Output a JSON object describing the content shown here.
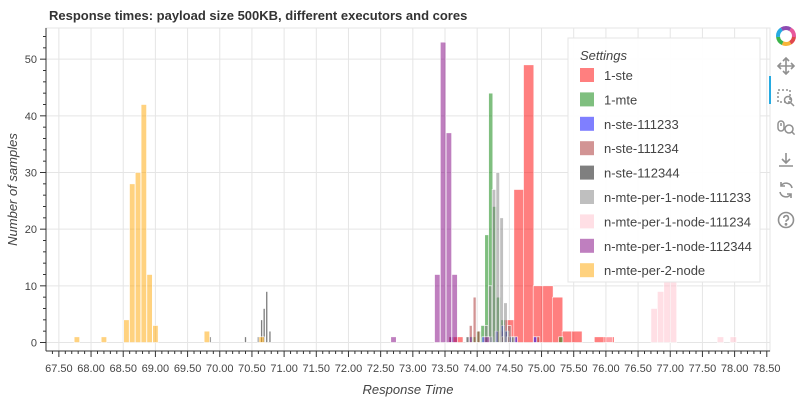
{
  "chart_data": {
    "type": "bar",
    "title": "Response times: payload size 500KB, different executors and cores",
    "xlabel": "Response Time",
    "ylabel": "Number of samples",
    "xlim": [
      67.3,
      78.55
    ],
    "ylim": [
      -1.5,
      55.5
    ],
    "x_tick_labels": [
      "67.50",
      "68.00",
      "68.50",
      "69.00",
      "69.50",
      "70.00",
      "70.50",
      "71.00",
      "71.50",
      "72.00",
      "72.50",
      "73.00",
      "73.50",
      "74.00",
      "74.50",
      "75.00",
      "75.50",
      "76.00",
      "76.50",
      "77.00",
      "77.50",
      "78.00",
      "78.50"
    ],
    "y_tick_labels": [
      "0",
      "10",
      "20",
      "30",
      "40",
      "50"
    ],
    "grid": true,
    "legend_title": "Settings",
    "legend_position": "top-right",
    "series": [
      {
        "name": "1-ste",
        "color": "#ff0000",
        "opacity": 0.5,
        "bin_width": 0.16,
        "bins": [
          [
            73.7,
            1
          ],
          [
            74.35,
            2
          ],
          [
            74.5,
            4
          ],
          [
            74.65,
            27
          ],
          [
            74.8,
            49
          ],
          [
            74.95,
            10
          ],
          [
            75.1,
            10
          ],
          [
            75.25,
            8
          ],
          [
            75.4,
            2
          ],
          [
            75.55,
            2
          ],
          [
            75.9,
            1
          ],
          [
            76.05,
            1
          ]
        ]
      },
      {
        "name": "1-mte",
        "color": "#008000",
        "opacity": 0.5,
        "bin_width": 0.065,
        "bins": [
          [
            73.95,
            1
          ],
          [
            74.02,
            2
          ],
          [
            74.09,
            3
          ],
          [
            74.15,
            19
          ],
          [
            74.21,
            44
          ],
          [
            74.27,
            24
          ],
          [
            74.33,
            8
          ],
          [
            74.4,
            4
          ],
          [
            74.46,
            2
          ],
          [
            74.52,
            1
          ],
          [
            75.3,
            1
          ]
        ]
      },
      {
        "name": "n-ste-111233",
        "color": "#0000ff",
        "opacity": 0.5,
        "bin_width": 0.05,
        "bins": [
          [
            73.6,
            1
          ],
          [
            73.9,
            1
          ],
          [
            74.1,
            1
          ],
          [
            74.22,
            1
          ],
          [
            74.3,
            2
          ],
          [
            74.4,
            3
          ],
          [
            74.46,
            2
          ],
          [
            74.52,
            1
          ],
          [
            74.6,
            1
          ],
          [
            74.9,
            1
          ]
        ]
      },
      {
        "name": "n-ste-111234",
        "color": "#a52a2a",
        "opacity": 0.5,
        "bin_width": 0.045,
        "bins": [
          [
            73.58,
            1
          ],
          [
            73.9,
            3
          ],
          [
            73.96,
            8
          ],
          [
            74.02,
            2
          ],
          [
            74.4,
            1
          ],
          [
            74.48,
            1
          ],
          [
            74.95,
            1
          ]
        ]
      },
      {
        "name": "n-ste-112344",
        "color": "#000000",
        "opacity": 0.5,
        "bin_width": 0.03,
        "bins": [
          [
            69.85,
            1
          ],
          [
            70.4,
            1
          ],
          [
            70.6,
            1
          ],
          [
            70.65,
            4
          ],
          [
            70.69,
            6
          ],
          [
            70.73,
            9
          ],
          [
            70.78,
            2
          ],
          [
            73.85,
            1
          ],
          [
            74.22,
            1
          ],
          [
            74.4,
            1
          ],
          [
            74.55,
            1
          ]
        ]
      },
      {
        "name": "n-mte-per-1-node-111233",
        "color": "#808080",
        "opacity": 0.5,
        "bin_width": 0.055,
        "bins": [
          [
            73.85,
            1
          ],
          [
            74.14,
            3
          ],
          [
            74.2,
            10
          ],
          [
            74.26,
            27
          ],
          [
            74.32,
            30
          ],
          [
            74.38,
            22
          ],
          [
            74.44,
            7
          ],
          [
            74.5,
            3
          ],
          [
            74.56,
            1
          ]
        ]
      },
      {
        "name": "n-mte-per-1-node-111234",
        "color": "#ffc0cb",
        "opacity": 0.5,
        "bin_width": 0.1,
        "bins": [
          [
            76.05,
            1
          ],
          [
            76.75,
            6
          ],
          [
            76.85,
            9
          ],
          [
            76.95,
            11
          ],
          [
            77.05,
            11
          ],
          [
            77.78,
            1
          ],
          [
            77.98,
            1
          ]
        ]
      },
      {
        "name": "n-mte-per-1-node-112344",
        "color": "#800080",
        "opacity": 0.5,
        "bin_width": 0.085,
        "bins": [
          [
            72.7,
            1
          ],
          [
            73.38,
            12
          ],
          [
            73.47,
            53
          ],
          [
            73.56,
            37
          ],
          [
            73.65,
            12
          ],
          [
            74.15,
            1
          ]
        ]
      },
      {
        "name": "n-mte-per-2-node",
        "color": "#ffa500",
        "opacity": 0.5,
        "bin_width": 0.085,
        "bins": [
          [
            67.78,
            1
          ],
          [
            68.2,
            1
          ],
          [
            68.55,
            4
          ],
          [
            68.64,
            28
          ],
          [
            68.73,
            30
          ],
          [
            68.82,
            42
          ],
          [
            68.91,
            12
          ],
          [
            69.0,
            3
          ],
          [
            69.8,
            2
          ],
          [
            70.65,
            1
          ]
        ]
      }
    ]
  },
  "toolbar": {
    "items": [
      "bokeh-logo",
      "pan-tool",
      "box-zoom-tool",
      "wheel-zoom-tool",
      "save-tool",
      "reset-tool",
      "help-tool"
    ]
  }
}
